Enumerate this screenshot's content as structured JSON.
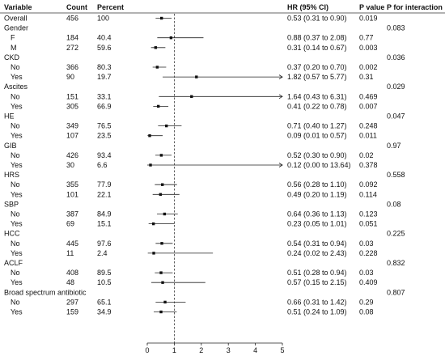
{
  "chart_data": {
    "type": "forest",
    "columns": {
      "variable": "Variable",
      "count": "Count",
      "percent": "Percent",
      "hr": "HR (95% CI)",
      "p": "P value",
      "p_int": "P for interaction"
    },
    "x_ticks": [
      0,
      1,
      2,
      3,
      4,
      5
    ],
    "xlim": [
      0,
      5
    ],
    "reference_line": 1,
    "rows": [
      {
        "label": "Overall",
        "indent": false,
        "count": "456",
        "percent": "100",
        "hr": 0.53,
        "lo": 0.31,
        "hi": 0.9,
        "hr_text": "0.53 (0.31 to 0.90)",
        "p": "0.019",
        "p_int": ""
      },
      {
        "label": "Gender",
        "indent": false,
        "header": true,
        "p_int": "0.083"
      },
      {
        "label": "F",
        "indent": true,
        "count": "184",
        "percent": "40.4",
        "hr": 0.88,
        "lo": 0.37,
        "hi": 2.08,
        "hr_text": "0.88 (0.37 to 2.08)",
        "p": "0.77",
        "p_int": ""
      },
      {
        "label": "M",
        "indent": true,
        "count": "272",
        "percent": "59.6",
        "hr": 0.31,
        "lo": 0.14,
        "hi": 0.67,
        "hr_text": "0.31 (0.14 to 0.67)",
        "p": "0.003",
        "p_int": ""
      },
      {
        "label": "CKD",
        "indent": false,
        "header": true,
        "p_int": "0.036"
      },
      {
        "label": "No",
        "indent": true,
        "count": "366",
        "percent": "80.3",
        "hr": 0.37,
        "lo": 0.2,
        "hi": 0.7,
        "hr_text": "0.37 (0.20 to 0.70)",
        "p": "0.002",
        "p_int": ""
      },
      {
        "label": "Yes",
        "indent": true,
        "count": "90",
        "percent": "19.7",
        "hr": 1.82,
        "lo": 0.57,
        "hi": 5.77,
        "hr_text": "1.82 (0.57 to 5.77)",
        "p": "0.31",
        "p_int": ""
      },
      {
        "label": "Ascites",
        "indent": false,
        "header": true,
        "p_int": "0.029"
      },
      {
        "label": "No",
        "indent": true,
        "count": "151",
        "percent": "33.1",
        "hr": 1.64,
        "lo": 0.43,
        "hi": 6.31,
        "hr_text": "1.64 (0.43 to 6.31)",
        "p": "0.469",
        "p_int": ""
      },
      {
        "label": "Yes",
        "indent": true,
        "count": "305",
        "percent": "66.9",
        "hr": 0.41,
        "lo": 0.22,
        "hi": 0.78,
        "hr_text": "0.41 (0.22 to 0.78)",
        "p": "0.007",
        "p_int": ""
      },
      {
        "label": "HE",
        "indent": false,
        "header": true,
        "p_int": "0.047"
      },
      {
        "label": "No",
        "indent": true,
        "count": "349",
        "percent": "76.5",
        "hr": 0.71,
        "lo": 0.4,
        "hi": 1.27,
        "hr_text": "0.71 (0.40 to 1.27)",
        "p": "0.248",
        "p_int": ""
      },
      {
        "label": "Yes",
        "indent": true,
        "count": "107",
        "percent": "23.5",
        "hr": 0.09,
        "lo": 0.01,
        "hi": 0.57,
        "hr_text": "0.09 (0.01 to 0.57)",
        "p": "0.011",
        "p_int": ""
      },
      {
        "label": "GIB",
        "indent": false,
        "header": true,
        "p_int": "0.97"
      },
      {
        "label": "No",
        "indent": true,
        "count": "426",
        "percent": "93.4",
        "hr": 0.52,
        "lo": 0.3,
        "hi": 0.9,
        "hr_text": "0.52 (0.30 to 0.90)",
        "p": "0.02",
        "p_int": ""
      },
      {
        "label": "Yes",
        "indent": true,
        "count": "30",
        "percent": "6.6",
        "hr": 0.12,
        "lo": 0.0,
        "hi": 13.64,
        "hr_text": "0.12 (0.00 to 13.64)",
        "p": "0.378",
        "p_int": ""
      },
      {
        "label": "HRS",
        "indent": false,
        "header": true,
        "p_int": "0.558"
      },
      {
        "label": "No",
        "indent": true,
        "count": "355",
        "percent": "77.9",
        "hr": 0.56,
        "lo": 0.28,
        "hi": 1.1,
        "hr_text": "0.56 (0.28 to 1.10)",
        "p": "0.092",
        "p_int": ""
      },
      {
        "label": "Yes",
        "indent": true,
        "count": "101",
        "percent": "22.1",
        "hr": 0.49,
        "lo": 0.2,
        "hi": 1.19,
        "hr_text": "0.49 (0.20 to 1.19)",
        "p": "0.114",
        "p_int": ""
      },
      {
        "label": "SBP",
        "indent": false,
        "header": true,
        "p_int": "0.08"
      },
      {
        "label": "No",
        "indent": true,
        "count": "387",
        "percent": "84.9",
        "hr": 0.64,
        "lo": 0.36,
        "hi": 1.13,
        "hr_text": "0.64 (0.36 to 1.13)",
        "p": "0.123",
        "p_int": ""
      },
      {
        "label": "Yes",
        "indent": true,
        "count": "69",
        "percent": "15.1",
        "hr": 0.23,
        "lo": 0.05,
        "hi": 1.01,
        "hr_text": "0.23 (0.05 to 1.01)",
        "p": "0.051",
        "p_int": ""
      },
      {
        "label": "HCC",
        "indent": false,
        "header": true,
        "p_int": "0.225"
      },
      {
        "label": "No",
        "indent": true,
        "count": "445",
        "percent": "97.6",
        "hr": 0.54,
        "lo": 0.31,
        "hi": 0.94,
        "hr_text": "0.54 (0.31 to 0.94)",
        "p": "0.03",
        "p_int": ""
      },
      {
        "label": "Yes",
        "indent": true,
        "count": "11",
        "percent": "2.4",
        "hr": 0.24,
        "lo": 0.02,
        "hi": 2.43,
        "hr_text": "0.24 (0.02 to 2.43)",
        "p": "0.228",
        "p_int": ""
      },
      {
        "label": "ACLF",
        "indent": false,
        "header": true,
        "p_int": "0.832"
      },
      {
        "label": "No",
        "indent": true,
        "count": "408",
        "percent": "89.5",
        "hr": 0.51,
        "lo": 0.28,
        "hi": 0.94,
        "hr_text": "0.51 (0.28 to 0.94)",
        "p": "0.03",
        "p_int": ""
      },
      {
        "label": "Yes",
        "indent": true,
        "count": "48",
        "percent": "10.5",
        "hr": 0.57,
        "lo": 0.15,
        "hi": 2.15,
        "hr_text": "0.57 (0.15 to 2.15)",
        "p": "0.409",
        "p_int": ""
      },
      {
        "label": "Broad  spectrum  antibiotic",
        "indent": false,
        "header": true,
        "p_int": "0.807"
      },
      {
        "label": "No",
        "indent": true,
        "count": "297",
        "percent": "65.1",
        "hr": 0.66,
        "lo": 0.31,
        "hi": 1.42,
        "hr_text": "0.66 (0.31 to 1.42)",
        "p": "0.29",
        "p_int": ""
      },
      {
        "label": "Yes",
        "indent": true,
        "count": "159",
        "percent": "34.9",
        "hr": 0.51,
        "lo": 0.24,
        "hi": 1.09,
        "hr_text": "0.51 (0.24 to 1.09)",
        "p": "0.08",
        "p_int": ""
      }
    ]
  }
}
